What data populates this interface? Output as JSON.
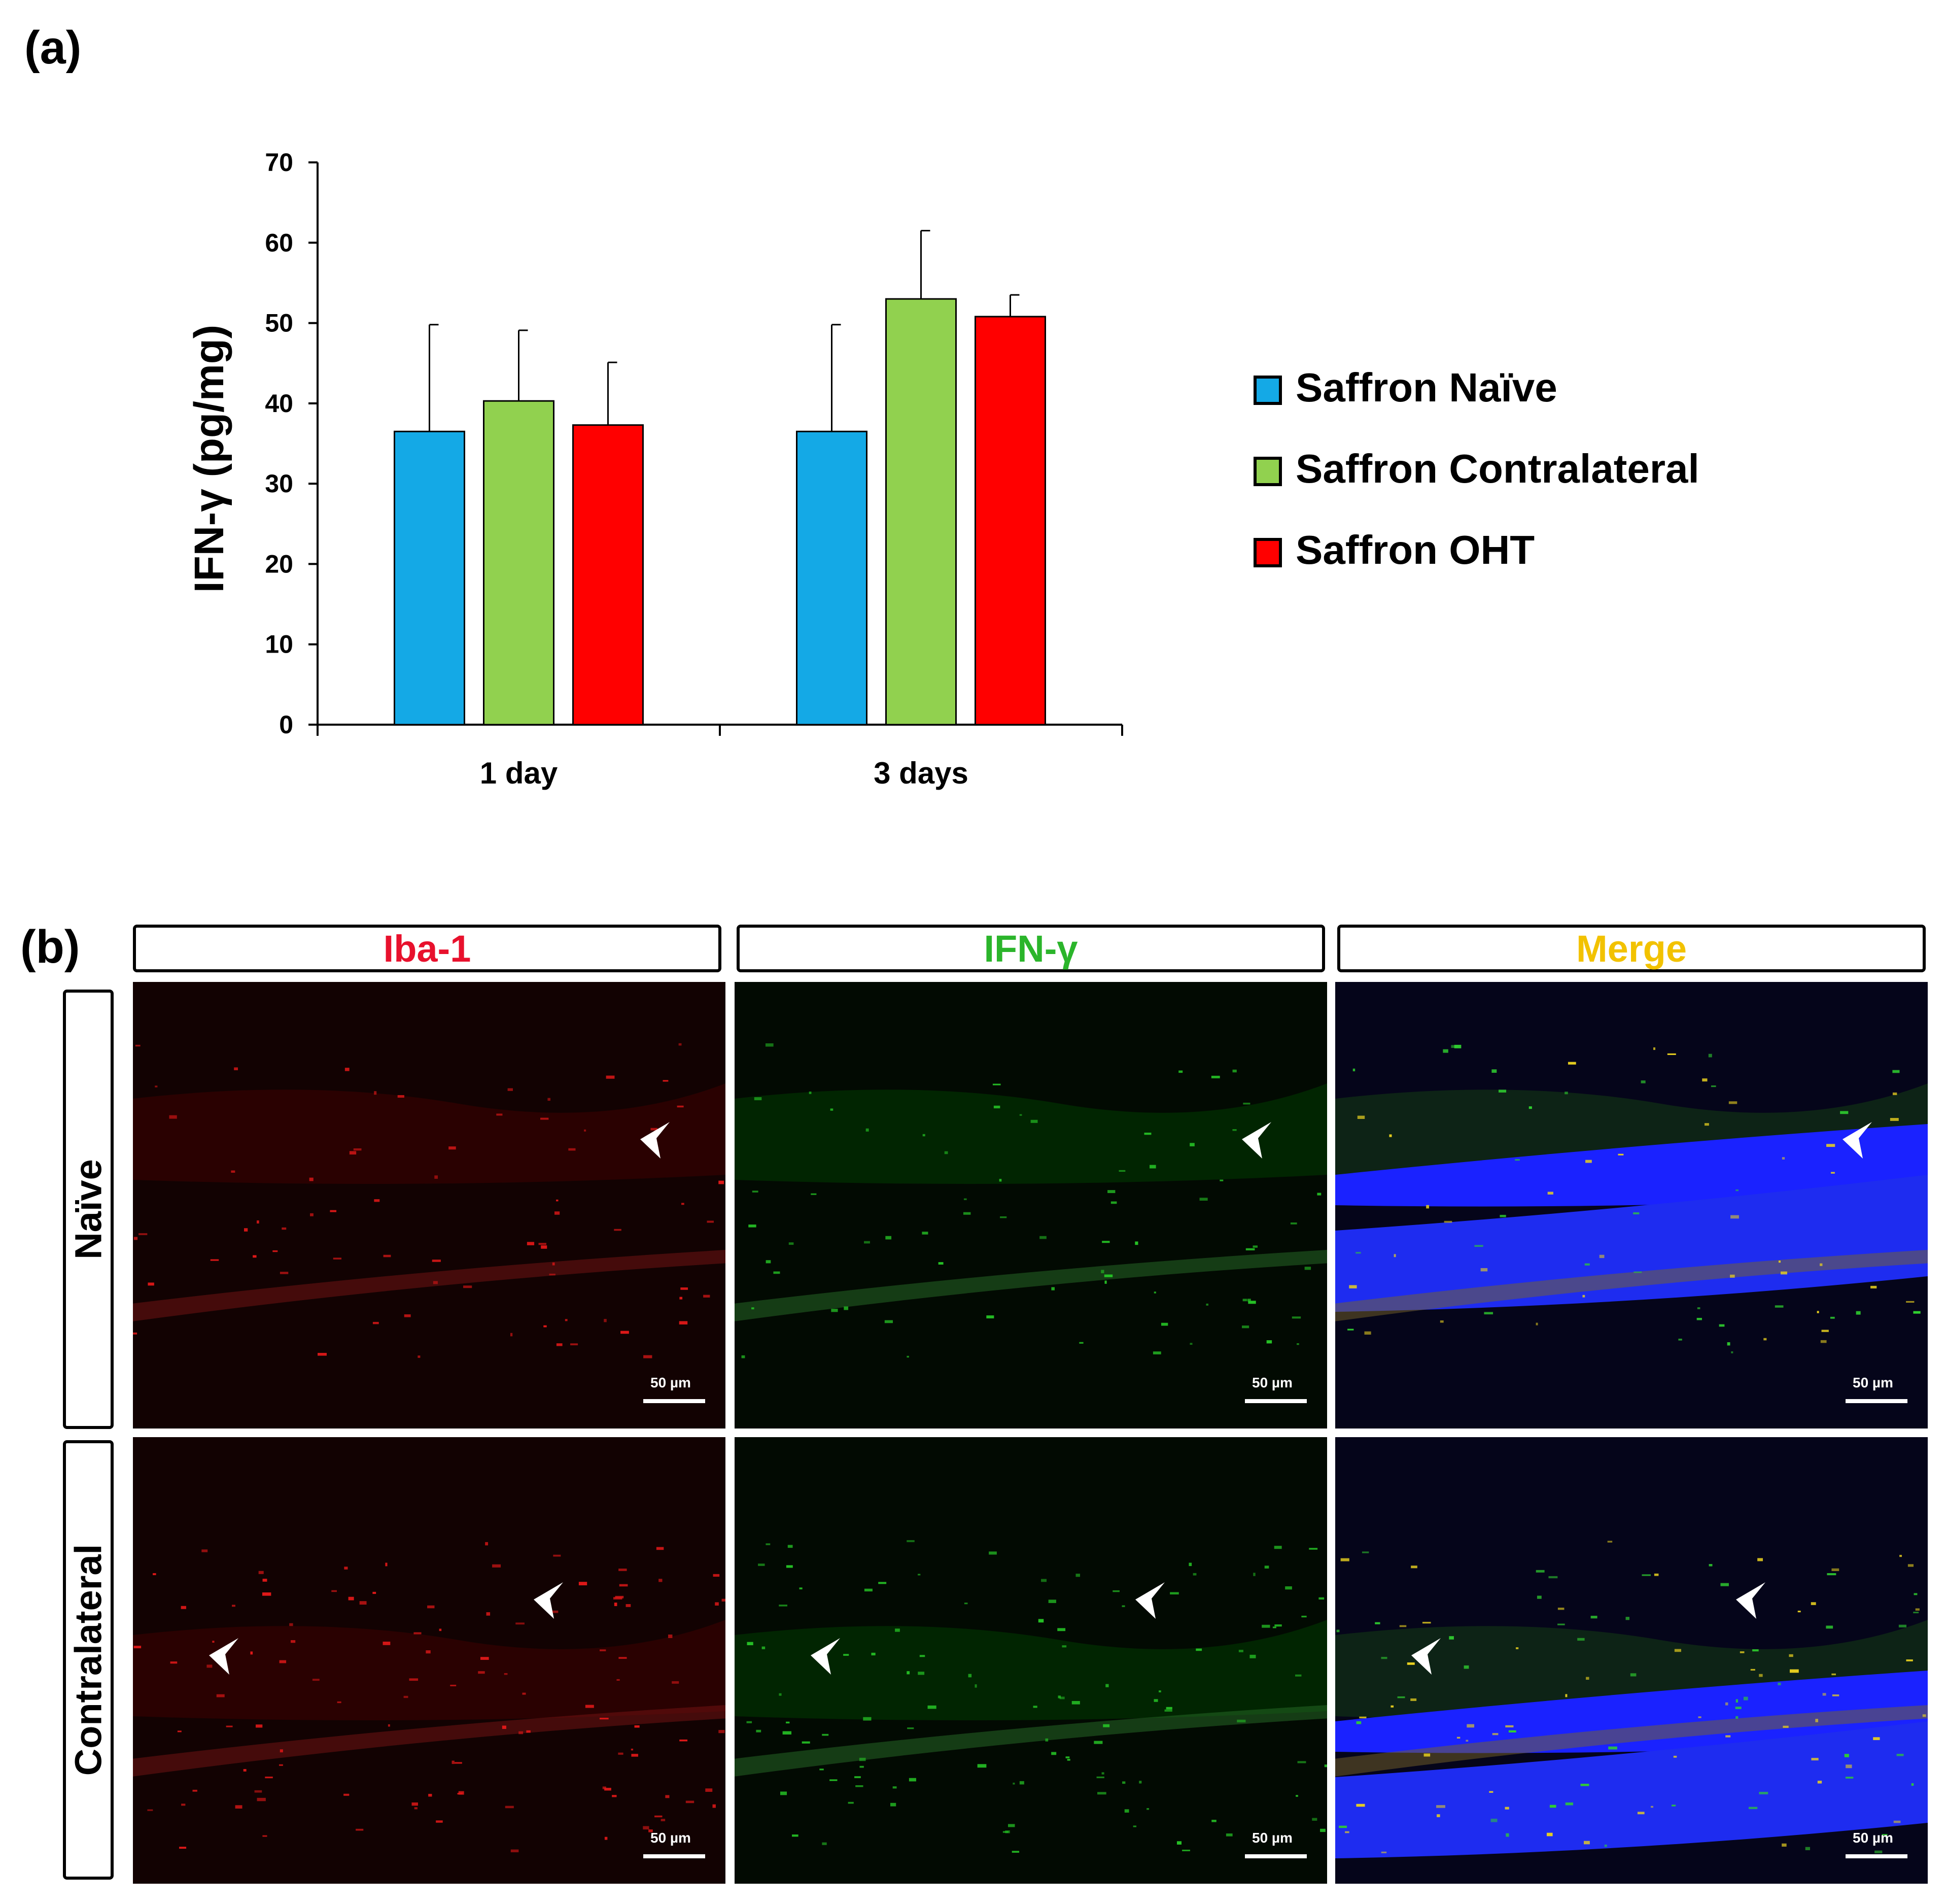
{
  "panel_a": {
    "letter": "(a)"
  },
  "panel_b": {
    "letter": "(b)"
  },
  "chart_data": {
    "type": "bar",
    "categories": [
      "1 day",
      "3 days"
    ],
    "series": [
      {
        "name": "Saffron Naïve",
        "values": [
          36.5,
          36.5
        ],
        "errors": [
          13.3,
          13.3
        ],
        "color": "#14A9E6"
      },
      {
        "name": "Saffron Contralateral",
        "values": [
          40.3,
          53.0
        ],
        "errors": [
          8.8,
          8.5
        ],
        "color": "#91D14F"
      },
      {
        "name": "Saffron OHT",
        "values": [
          37.3,
          50.8
        ],
        "errors": [
          7.8,
          2.7
        ],
        "color": "#FF0000"
      }
    ],
    "ylabel": "IFN-γ (pg/mg)",
    "xlabel": "",
    "ylim": [
      0,
      70
    ],
    "yticks": [
      "0",
      "10",
      "20",
      "30",
      "40",
      "50",
      "60",
      "70"
    ],
    "legend": "right",
    "grid": false
  },
  "micrographs": {
    "columns": [
      {
        "label": "Iba-1",
        "color": "#E8112D"
      },
      {
        "label": "IFN-γ",
        "color": "#2BB52B"
      },
      {
        "label": "Merge",
        "color": "#F2C200"
      }
    ],
    "rows": [
      {
        "label": "Naïve"
      },
      {
        "label": "Contralateral"
      }
    ],
    "scale_bar": "50 µm"
  }
}
